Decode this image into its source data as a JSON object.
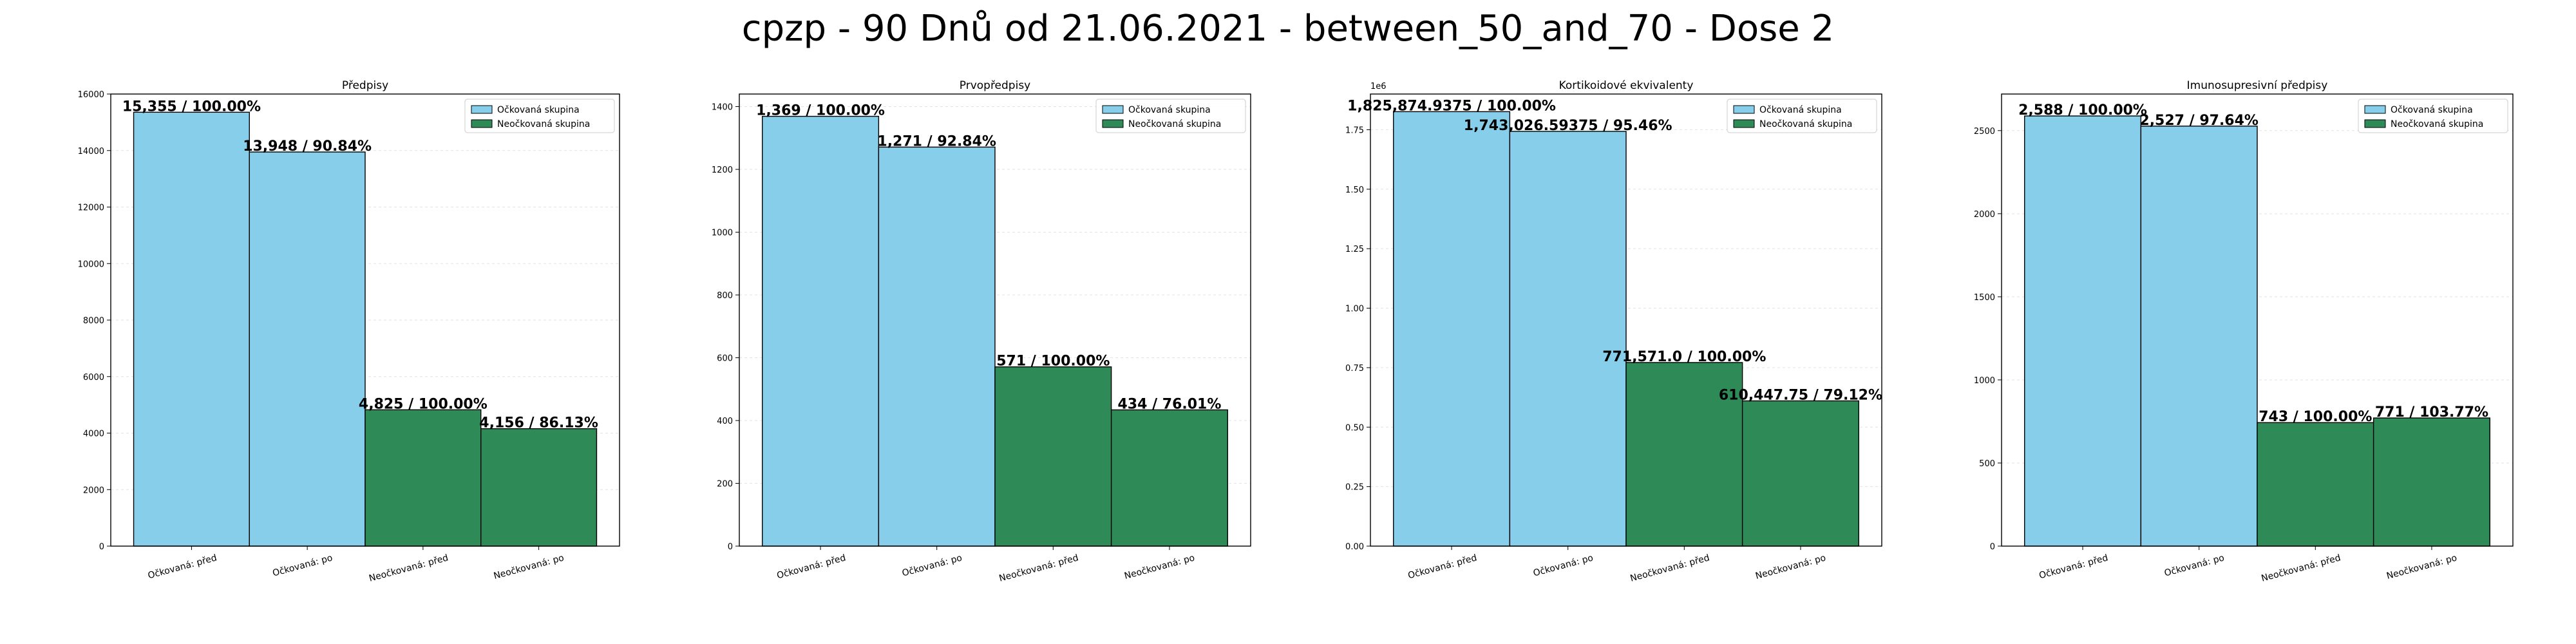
{
  "suptitle": "cpzp - 90 Dnů od 21.06.2021 - between_50_and_70 - Dose 2",
  "colors": {
    "vaccinated": "#87ceeb",
    "unvaccinated": "#2e8b57"
  },
  "chart_data": [
    {
      "type": "bar",
      "title": "Předpisy",
      "categories": [
        "Očkovaná: před",
        "Očkovaná: po",
        "Neočkovaná: před",
        "Neočkovaná: po"
      ],
      "values": [
        15355,
        13948,
        4825,
        4156
      ],
      "value_labels": [
        "15,355 / 100.00%",
        "13,948 / 90.84%",
        "4,825 / 100.00%",
        "4,156 / 86.13%"
      ],
      "legend": [
        "Očkovaná skupina",
        "Neočkovaná skupina"
      ],
      "legend_position": "top-right",
      "ylim": [
        0,
        16000
      ],
      "yticks": [
        0,
        2000,
        4000,
        6000,
        8000,
        10000,
        12000,
        14000,
        16000
      ],
      "ytick_labels": [
        "0",
        "2000",
        "4000",
        "6000",
        "8000",
        "10000",
        "12000",
        "14000",
        "16000"
      ],
      "offset_label": "",
      "grid": "y",
      "xlabel": "",
      "ylabel": ""
    },
    {
      "type": "bar",
      "title": "Prvopředpisy",
      "categories": [
        "Očkovaná: před",
        "Očkovaná: po",
        "Neočkovaná: před",
        "Neočkovaná: po"
      ],
      "values": [
        1369,
        1271,
        571,
        434
      ],
      "value_labels": [
        "1,369 / 100.00%",
        "1,271 / 92.84%",
        "571 / 100.00%",
        "434 / 76.01%"
      ],
      "legend": [
        "Očkovaná skupina",
        "Neočkovaná skupina"
      ],
      "legend_position": "top-right",
      "ylim": [
        0,
        1440
      ],
      "yticks": [
        0,
        200,
        400,
        600,
        800,
        1000,
        1200,
        1400
      ],
      "ytick_labels": [
        "0",
        "200",
        "400",
        "600",
        "800",
        "1000",
        "1200",
        "1400"
      ],
      "offset_label": "",
      "grid": "y",
      "xlabel": "",
      "ylabel": ""
    },
    {
      "type": "bar",
      "title": "Kortikoidové ekvivalenty",
      "categories": [
        "Očkovaná: před",
        "Očkovaná: po",
        "Neočkovaná: před",
        "Neočkovaná: po"
      ],
      "values": [
        1825874.9375,
        1743026.59375,
        771571.0,
        610447.75
      ],
      "value_labels": [
        "1,825,874.9375 / 100.00%",
        "1,743,026.59375 / 95.46%",
        "771,571.0 / 100.00%",
        "610,447.75 / 79.12%"
      ],
      "legend": [
        "Očkovaná skupina",
        "Neočkovaná skupina"
      ],
      "legend_position": "top-right",
      "ylim": [
        0,
        1900000
      ],
      "yticks": [
        0,
        250000,
        500000,
        750000,
        1000000,
        1250000,
        1500000,
        1750000
      ],
      "ytick_labels": [
        "0.00",
        "0.25",
        "0.50",
        "0.75",
        "1.00",
        "1.25",
        "1.50",
        "1.75"
      ],
      "offset_label": "1e6",
      "grid": "y",
      "xlabel": "",
      "ylabel": ""
    },
    {
      "type": "bar",
      "title": "Imunosupresivní předpisy",
      "categories": [
        "Očkovaná: před",
        "Očkovaná: po",
        "Neočkovaná: před",
        "Neočkovaná: po"
      ],
      "values": [
        2588,
        2527,
        743,
        771
      ],
      "value_labels": [
        "2,588 / 100.00%",
        "2,527 / 97.64%",
        "743 / 100.00%",
        "771 / 103.77%"
      ],
      "legend": [
        "Očkovaná skupina",
        "Neočkovaná skupina"
      ],
      "legend_position": "top-right",
      "ylim": [
        0,
        2720
      ],
      "yticks": [
        0,
        500,
        1000,
        1500,
        2000,
        2500
      ],
      "ytick_labels": [
        "0",
        "500",
        "1000",
        "1500",
        "2000",
        "2500"
      ],
      "offset_label": "",
      "grid": "y",
      "xlabel": "",
      "ylabel": ""
    }
  ]
}
